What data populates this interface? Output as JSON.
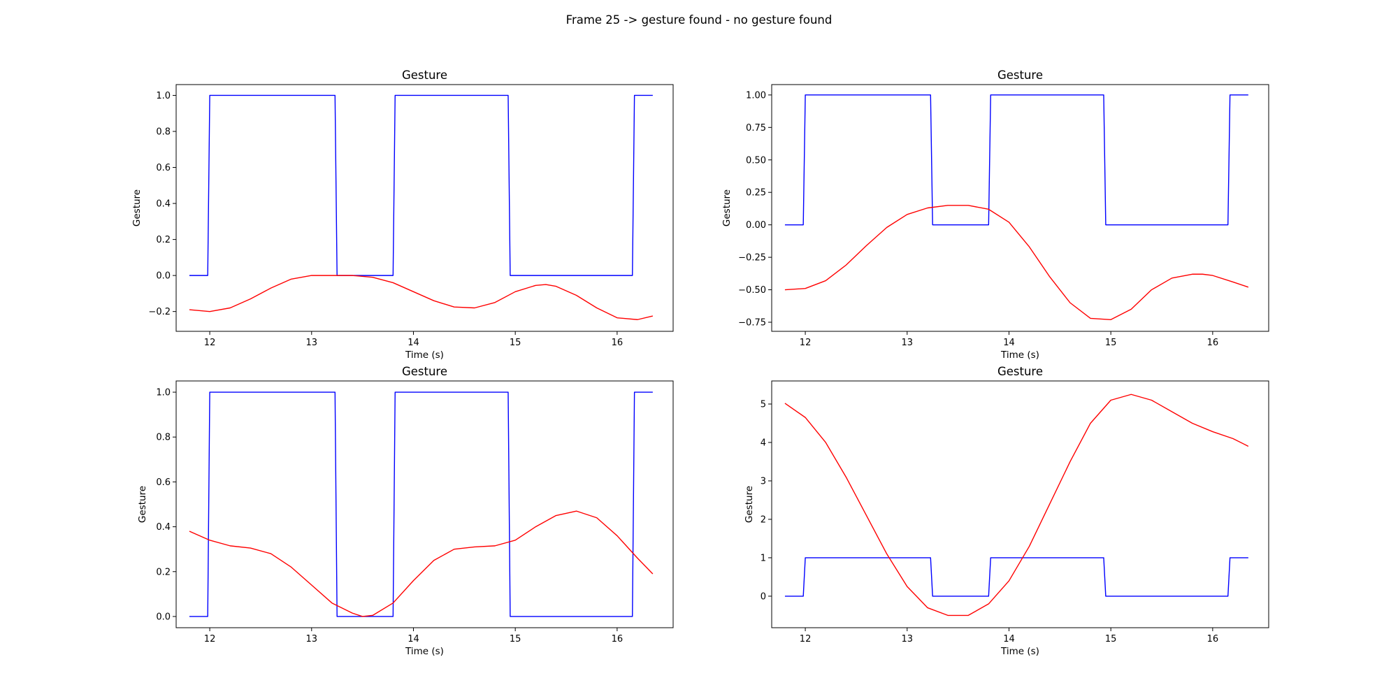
{
  "figure": {
    "title": "Frame 25 -> gesture found - no gesture found"
  },
  "chart_data": [
    {
      "type": "line",
      "title": "Gesture",
      "xlabel": "Time (s)",
      "ylabel": "Gesture",
      "xlim": [
        11.67,
        16.55
      ],
      "ylim": [
        -0.31,
        1.06
      ],
      "xticks": [
        12,
        13,
        14,
        15,
        16
      ],
      "yticks": [
        -0.2,
        0.0,
        0.2,
        0.4,
        0.6,
        0.8,
        1.0
      ],
      "ytick_labels": [
        "−0.2",
        "0.0",
        "0.2",
        "0.4",
        "0.6",
        "0.8",
        "1.0"
      ],
      "grid": false,
      "series": [
        {
          "color": "#0000ff",
          "x": [
            11.8,
            11.98,
            12.0,
            13.23,
            13.25,
            13.8,
            13.82,
            14.93,
            14.95,
            16.15,
            16.17,
            16.35
          ],
          "y": [
            0,
            0,
            1,
            1,
            0,
            0,
            1,
            1,
            0,
            0,
            1,
            1
          ]
        },
        {
          "color": "#ff0000",
          "x": [
            11.8,
            12.0,
            12.2,
            12.4,
            12.6,
            12.8,
            13.0,
            13.2,
            13.4,
            13.6,
            13.8,
            14.0,
            14.2,
            14.4,
            14.6,
            14.8,
            15.0,
            15.2,
            15.3,
            15.4,
            15.6,
            15.8,
            16.0,
            16.2,
            16.35
          ],
          "y": [
            -0.19,
            -0.2,
            -0.18,
            -0.13,
            -0.07,
            -0.02,
            0.0,
            0.0,
            0.0,
            -0.01,
            -0.04,
            -0.09,
            -0.14,
            -0.175,
            -0.18,
            -0.15,
            -0.09,
            -0.055,
            -0.05,
            -0.06,
            -0.11,
            -0.18,
            -0.235,
            -0.245,
            -0.225
          ]
        }
      ]
    },
    {
      "type": "line",
      "title": "Gesture",
      "xlabel": "Time (s)",
      "ylabel": "Gesture",
      "xlim": [
        11.67,
        16.55
      ],
      "ylim": [
        -0.82,
        1.08
      ],
      "xticks": [
        12,
        13,
        14,
        15,
        16
      ],
      "yticks": [
        -0.75,
        -0.5,
        -0.25,
        0.0,
        0.25,
        0.5,
        0.75,
        1.0
      ],
      "ytick_labels": [
        "−0.75",
        "−0.50",
        "−0.25",
        "0.00",
        "0.25",
        "0.50",
        "0.75",
        "1.00"
      ],
      "grid": false,
      "series": [
        {
          "color": "#0000ff",
          "x": [
            11.8,
            11.98,
            12.0,
            13.23,
            13.25,
            13.8,
            13.82,
            14.93,
            14.95,
            16.15,
            16.17,
            16.35
          ],
          "y": [
            0,
            0,
            1,
            1,
            0,
            0,
            1,
            1,
            0,
            0,
            1,
            1
          ]
        },
        {
          "color": "#ff0000",
          "x": [
            11.8,
            12.0,
            12.2,
            12.4,
            12.6,
            12.8,
            13.0,
            13.2,
            13.4,
            13.6,
            13.8,
            14.0,
            14.2,
            14.4,
            14.6,
            14.8,
            15.0,
            15.2,
            15.4,
            15.6,
            15.8,
            15.9,
            16.0,
            16.2,
            16.35
          ],
          "y": [
            -0.5,
            -0.49,
            -0.43,
            -0.31,
            -0.16,
            -0.02,
            0.08,
            0.13,
            0.15,
            0.15,
            0.12,
            0.02,
            -0.17,
            -0.4,
            -0.6,
            -0.72,
            -0.73,
            -0.65,
            -0.5,
            -0.41,
            -0.38,
            -0.38,
            -0.39,
            -0.44,
            -0.48
          ]
        }
      ]
    },
    {
      "type": "line",
      "title": "Gesture",
      "xlabel": "Time (s)",
      "ylabel": "Gesture",
      "xlim": [
        11.67,
        16.55
      ],
      "ylim": [
        -0.05,
        1.05
      ],
      "xticks": [
        12,
        13,
        14,
        15,
        16
      ],
      "yticks": [
        0.0,
        0.2,
        0.4,
        0.6,
        0.8,
        1.0
      ],
      "ytick_labels": [
        "0.0",
        "0.2",
        "0.4",
        "0.6",
        "0.8",
        "1.0"
      ],
      "grid": false,
      "series": [
        {
          "color": "#0000ff",
          "x": [
            11.8,
            11.98,
            12.0,
            13.23,
            13.25,
            13.8,
            13.82,
            14.93,
            14.95,
            16.15,
            16.17,
            16.35
          ],
          "y": [
            0,
            0,
            1,
            1,
            0,
            0,
            1,
            1,
            0,
            0,
            1,
            1
          ]
        },
        {
          "color": "#ff0000",
          "x": [
            11.8,
            12.0,
            12.2,
            12.4,
            12.6,
            12.8,
            13.0,
            13.2,
            13.4,
            13.5,
            13.6,
            13.8,
            14.0,
            14.2,
            14.4,
            14.6,
            14.8,
            15.0,
            15.2,
            15.4,
            15.6,
            15.8,
            16.0,
            16.2,
            16.35
          ],
          "y": [
            0.38,
            0.34,
            0.315,
            0.305,
            0.28,
            0.22,
            0.14,
            0.06,
            0.015,
            0.0,
            0.005,
            0.06,
            0.16,
            0.25,
            0.3,
            0.31,
            0.315,
            0.34,
            0.4,
            0.45,
            0.47,
            0.44,
            0.36,
            0.26,
            0.19
          ]
        }
      ]
    },
    {
      "type": "line",
      "title": "Gesture",
      "xlabel": "Time (s)",
      "ylabel": "Gesture",
      "xlim": [
        11.67,
        16.55
      ],
      "ylim": [
        -0.82,
        5.6
      ],
      "xticks": [
        12,
        13,
        14,
        15,
        16
      ],
      "yticks": [
        0,
        1,
        2,
        3,
        4,
        5
      ],
      "ytick_labels": [
        "0",
        "1",
        "2",
        "3",
        "4",
        "5"
      ],
      "grid": false,
      "series": [
        {
          "color": "#0000ff",
          "x": [
            11.8,
            11.98,
            12.0,
            13.23,
            13.25,
            13.8,
            13.82,
            14.93,
            14.95,
            16.15,
            16.17,
            16.35
          ],
          "y": [
            0,
            0,
            1,
            1,
            0,
            0,
            1,
            1,
            0,
            0,
            1,
            1
          ]
        },
        {
          "color": "#ff0000",
          "x": [
            11.8,
            12.0,
            12.2,
            12.4,
            12.6,
            12.8,
            13.0,
            13.2,
            13.4,
            13.6,
            13.8,
            14.0,
            14.2,
            14.4,
            14.6,
            14.8,
            15.0,
            15.2,
            15.4,
            15.6,
            15.8,
            16.0,
            16.2,
            16.35
          ],
          "y": [
            5.02,
            4.65,
            4.0,
            3.1,
            2.1,
            1.1,
            0.25,
            -0.3,
            -0.5,
            -0.5,
            -0.2,
            0.4,
            1.3,
            2.4,
            3.5,
            4.5,
            5.1,
            5.25,
            5.1,
            4.8,
            4.5,
            4.28,
            4.1,
            3.9
          ]
        }
      ]
    }
  ]
}
